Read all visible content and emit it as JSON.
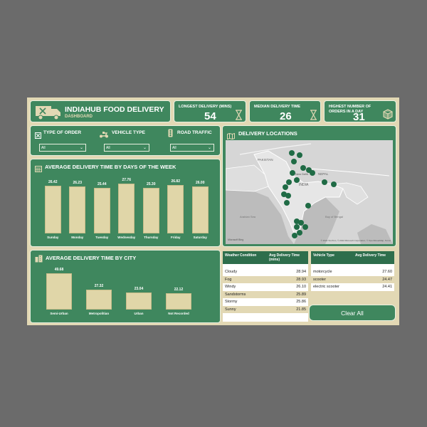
{
  "header": {
    "title": "INDIAHUB FOOD DELIVERY",
    "subtitle": "DASHBOARD"
  },
  "kpis": [
    {
      "label": "LONGEST DELIVERY (mins)",
      "value": "54",
      "icon": "hourglass-icon"
    },
    {
      "label": "MEDIAN DELIVERY TIME",
      "value": "26",
      "icon": "hourglass-icon"
    },
    {
      "label": "HIGHEST NUMBER OF ORDERS IN A DAY",
      "value": "31",
      "icon": "package-icon"
    }
  ],
  "filters": [
    {
      "label": "TYPE OF ORDER",
      "value": "All",
      "icon": "order-filter-icon"
    },
    {
      "label": "VEHICLE TYPE",
      "value": "All",
      "icon": "scooter-icon"
    },
    {
      "label": "ROAD TRAFFIC",
      "value": "All",
      "icon": "traffic-light-icon"
    }
  ],
  "map": {
    "title": "DELIVERY LOCATIONS",
    "labels": {
      "pakistan": "PAKISTAN",
      "nepal": "NEPAL",
      "india": "INDIA",
      "new_delhi": "New Delhi",
      "arabian_sea": "Arabian Sea",
      "bay_of_bengal": "Bay of Bengal"
    },
    "attribution": "© 2022 TomTom, © 2022 Microsoft Corporation, © OpenStreetMap, Terms",
    "logo": "Microsoft Bing"
  },
  "days_chart": {
    "title": "AVERAGE DELIVERY TIME BY DAYS OF THE WEEK"
  },
  "city_chart": {
    "title": "AVERAGE DELIVERY TIME BY CITY"
  },
  "chart_data": [
    {
      "type": "bar",
      "title": "AVERAGE DELIVERY TIME BY DAYS OF THE WEEK",
      "categories": [
        "Sunday",
        "Monday",
        "Tuesday",
        "Wednesday",
        "Thursday",
        "Friday",
        "Saturday"
      ],
      "values": [
        26.42,
        26.23,
        25.44,
        27.76,
        25.3,
        26.82,
        26.0
      ],
      "labels": [
        "26.42",
        "26.23",
        "25.44",
        "27.76",
        "25.30",
        "26.82",
        "26.00"
      ],
      "ylim": [
        0,
        30
      ]
    },
    {
      "type": "bar",
      "title": "AVERAGE DELIVERY TIME BY CITY",
      "categories": [
        "Semi-Urban",
        "Metropolitian",
        "Urban",
        "Not Recorded"
      ],
      "values": [
        49.68,
        27.32,
        23.04,
        22.12
      ],
      "labels": [
        "49.68",
        "27.32",
        "23.04",
        "22.12"
      ],
      "ylim": [
        0,
        50
      ]
    }
  ],
  "weather_table": {
    "headers": [
      "Weather Condition",
      "Avg Delivery Time (mins)"
    ],
    "rows": [
      [
        "Cloudy",
        "28.94"
      ],
      [
        "Fog",
        "28.93"
      ],
      [
        "Windy",
        "26.10"
      ],
      [
        "Sandstorms",
        "25.89"
      ],
      [
        "Stormy",
        "25.86"
      ],
      [
        "Sunny",
        "21.85"
      ]
    ]
  },
  "vehicle_table": {
    "headers": [
      "Vehicle Type",
      "Avg Delivery Time"
    ],
    "rows": [
      [
        "motorcycle",
        "27.60"
      ],
      [
        "scooter",
        "24.47"
      ],
      [
        "electric scooter",
        "24.41"
      ]
    ]
  },
  "clear_button": {
    "label": "Clear All"
  },
  "colors": {
    "panel": "#3f875e",
    "background": "#e2d8b4",
    "bar": "#e0d6a8",
    "dot": "#1f6b45"
  }
}
